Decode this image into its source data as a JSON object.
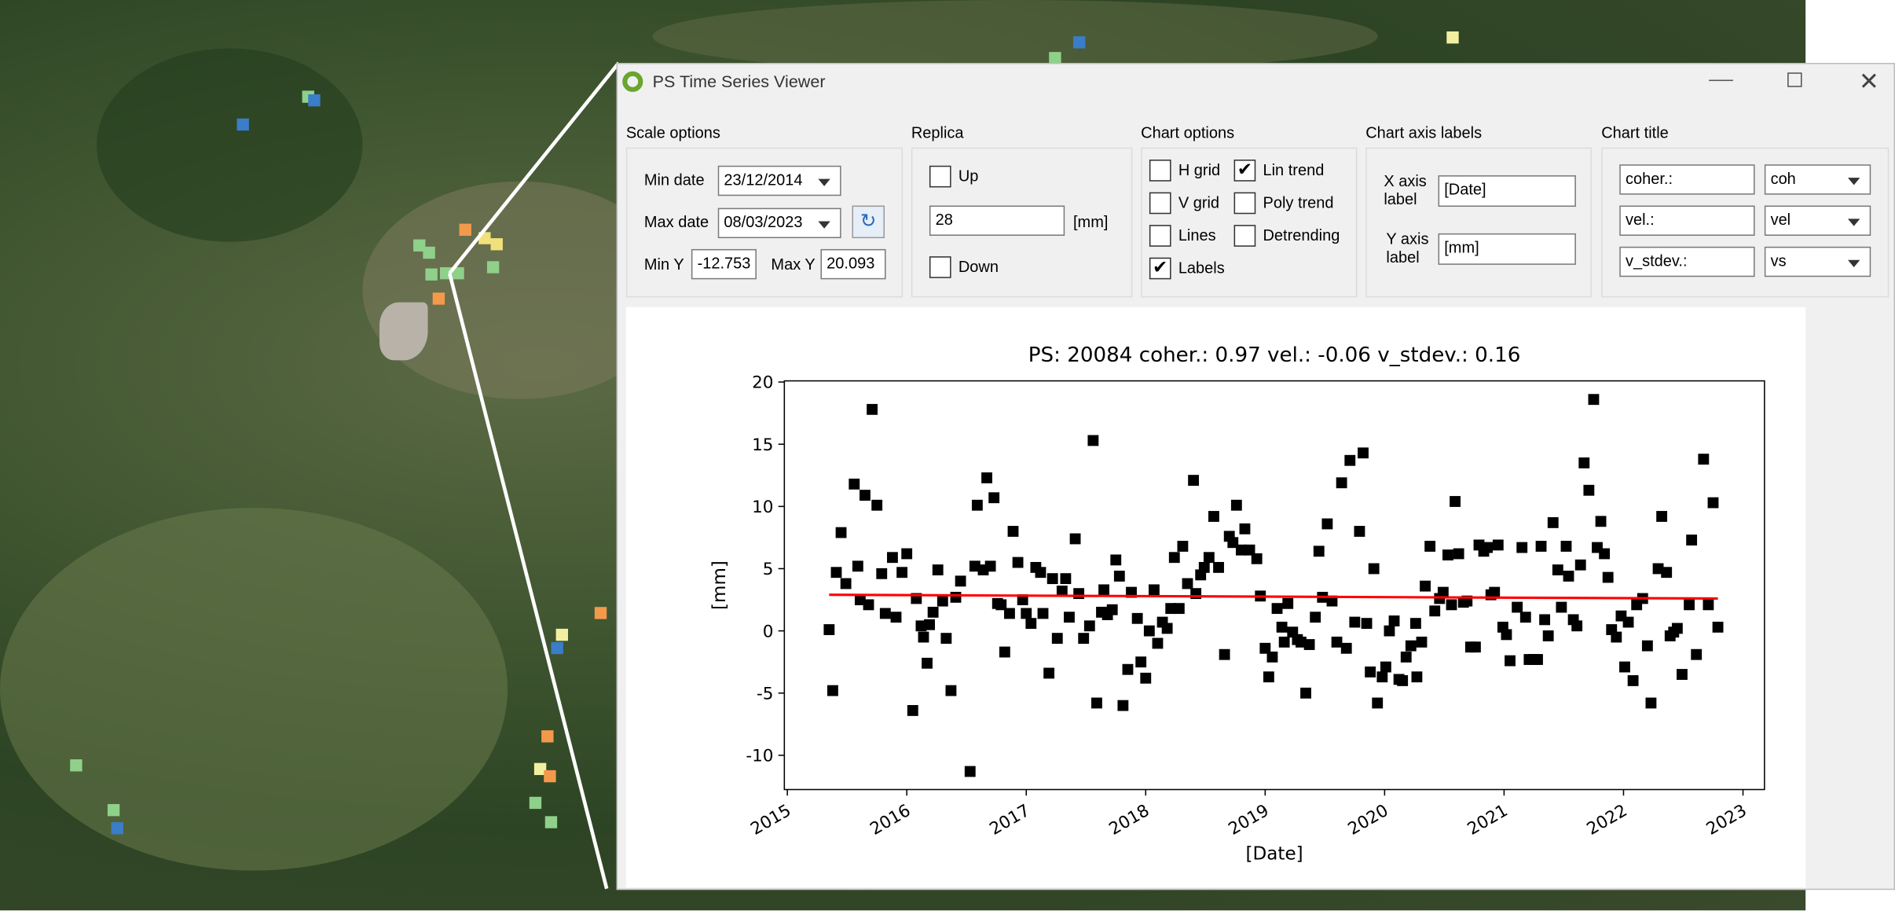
{
  "window": {
    "title": "PS Time Series Viewer"
  },
  "scale_options": {
    "label": "Scale options",
    "min_date_label": "Min date",
    "min_date": "23/12/2014",
    "max_date_label": "Max date",
    "max_date": "08/03/2023",
    "min_y_label": "Min Y",
    "min_y": "-12.753",
    "max_y_label": "Max Y",
    "max_y": "20.093"
  },
  "replica": {
    "label": "Replica",
    "up": "Up",
    "value": "28",
    "unit": "[mm]",
    "down": "Down"
  },
  "chart_options": {
    "label": "Chart options",
    "checkboxes": [
      {
        "label": "H grid",
        "checked": false
      },
      {
        "label": "V grid",
        "checked": false
      },
      {
        "label": "Lines",
        "checked": false
      },
      {
        "label": "Labels",
        "checked": true
      },
      {
        "label": "Lin trend",
        "checked": true
      },
      {
        "label": "Poly trend",
        "checked": false
      },
      {
        "label": "Detrending",
        "checked": false
      }
    ]
  },
  "axis_labels": {
    "label": "Chart axis labels",
    "x_label": "X axis label",
    "x_value": "[Date]",
    "y_label": "Y axis label",
    "y_value": "[mm]"
  },
  "chart_title_panel": {
    "label": "Chart title",
    "rows": [
      {
        "text": "coher.:",
        "field": "coh"
      },
      {
        "text": "vel.:",
        "field": "vel"
      },
      {
        "text": "v_stdev.:",
        "field": "vs"
      }
    ]
  },
  "chart_data": {
    "type": "scatter",
    "title": "PS: 20084 coher.: 0.97 vel.: -0.06 v_stdev.: 0.16",
    "xlabel": "[Date]",
    "ylabel": "[mm]",
    "color": "#000000",
    "xlim": [
      2014.975,
      2023.18
    ],
    "ylim": [
      -12.753,
      20.093
    ],
    "xticks": [
      2015,
      2016,
      2017,
      2018,
      2019,
      2020,
      2021,
      2022,
      2023
    ],
    "yticks": [
      -10,
      -5,
      0,
      5,
      10,
      15,
      20
    ],
    "x": [
      2015.35,
      2015.38,
      2015.41,
      2015.45,
      2015.49,
      2015.56,
      2015.59,
      2015.61,
      2015.65,
      2015.68,
      2015.71,
      2015.75,
      2015.79,
      2015.82,
      2015.88,
      2015.91,
      2015.96,
      2016.0,
      2016.05,
      2016.08,
      2016.12,
      2016.14,
      2016.17,
      2016.19,
      2016.22,
      2016.26,
      2016.3,
      2016.33,
      2016.37,
      2016.41,
      2016.45,
      2016.53,
      2016.57,
      2016.59,
      2016.64,
      2016.67,
      2016.7,
      2016.73,
      2016.76,
      2016.79,
      2016.82,
      2016.86,
      2016.89,
      2016.93,
      2016.97,
      2017.0,
      2017.04,
      2017.08,
      2017.12,
      2017.14,
      2017.19,
      2017.22,
      2017.26,
      2017.3,
      2017.33,
      2017.36,
      2017.41,
      2017.44,
      2017.48,
      2017.53,
      2017.56,
      2017.59,
      2017.63,
      2017.65,
      2017.68,
      2017.72,
      2017.75,
      2017.78,
      2017.81,
      2017.85,
      2017.88,
      2017.93,
      2017.96,
      2018.0,
      2018.03,
      2018.07,
      2018.1,
      2018.14,
      2018.18,
      2018.21,
      2018.24,
      2018.28,
      2018.31,
      2018.35,
      2018.4,
      2018.42,
      2018.46,
      2018.49,
      2018.53,
      2018.57,
      2018.61,
      2018.66,
      2018.7,
      2018.73,
      2018.76,
      2018.8,
      2018.83,
      2018.87,
      2018.93,
      2018.96,
      2019.0,
      2019.03,
      2019.06,
      2019.1,
      2019.14,
      2019.16,
      2019.19,
      2019.23,
      2019.27,
      2019.3,
      2019.34,
      2019.37,
      2019.42,
      2019.45,
      2019.48,
      2019.52,
      2019.56,
      2019.6,
      2019.64,
      2019.68,
      2019.71,
      2019.75,
      2019.79,
      2019.82,
      2019.85,
      2019.88,
      2019.91,
      2019.94,
      2019.98,
      2020.01,
      2020.04,
      2020.08,
      2020.12,
      2020.15,
      2020.18,
      2020.22,
      2020.26,
      2020.27,
      2020.31,
      2020.34,
      2020.38,
      2020.42,
      2020.46,
      2020.49,
      2020.53,
      2020.56,
      2020.59,
      2020.62,
      2020.66,
      2020.69,
      2020.72,
      2020.76,
      2020.79,
      2020.83,
      2020.86,
      2020.89,
      2020.92,
      2020.95,
      2020.99,
      2021.02,
      2021.05,
      2021.11,
      2021.15,
      2021.18,
      2021.21,
      2021.25,
      2021.28,
      2021.31,
      2021.34,
      2021.37,
      2021.41,
      2021.45,
      2021.48,
      2021.52,
      2021.54,
      2021.58,
      2021.61,
      2021.64,
      2021.67,
      2021.71,
      2021.75,
      2021.78,
      2021.81,
      2021.84,
      2021.87,
      2021.9,
      2021.94,
      2021.98,
      2022.01,
      2022.04,
      2022.08,
      2022.11,
      2022.16,
      2022.2,
      2022.23,
      2022.29,
      2022.32,
      2022.36,
      2022.39,
      2022.42,
      2022.45,
      2022.49,
      2022.55,
      2022.57,
      2022.61,
      2022.67,
      2022.71,
      2022.75,
      2022.79
    ],
    "values": [
      0.1,
      -4.8,
      4.7,
      7.9,
      3.8,
      11.8,
      5.2,
      2.5,
      10.9,
      2.1,
      17.8,
      10.1,
      4.6,
      1.4,
      5.9,
      1.1,
      4.7,
      6.2,
      -6.4,
      2.6,
      0.4,
      -0.5,
      -2.6,
      0.5,
      1.5,
      4.9,
      2.4,
      -0.6,
      -4.8,
      2.7,
      4.0,
      -11.3,
      5.2,
      10.1,
      4.9,
      12.3,
      5.2,
      10.7,
      2.2,
      2.1,
      -1.7,
      1.4,
      8.0,
      5.5,
      2.5,
      1.4,
      0.6,
      5.1,
      4.7,
      1.4,
      -3.4,
      4.2,
      -0.6,
      3.2,
      4.2,
      1.1,
      7.4,
      3.0,
      -0.6,
      0.4,
      15.3,
      -5.8,
      1.5,
      3.3,
      1.3,
      1.7,
      5.7,
      4.4,
      -6.0,
      -3.1,
      3.1,
      1.0,
      -2.5,
      -3.8,
      0.0,
      3.3,
      -1.0,
      0.7,
      0.2,
      1.8,
      5.9,
      1.8,
      6.8,
      3.8,
      12.1,
      3.0,
      4.5,
      5.1,
      5.9,
      9.2,
      5.1,
      -1.9,
      7.6,
      7.1,
      10.1,
      6.5,
      8.2,
      6.5,
      5.8,
      2.8,
      -1.4,
      -3.7,
      -2.1,
      1.8,
      0.3,
      -0.9,
      2.2,
      -0.1,
      -0.7,
      -0.9,
      -5.0,
      -1.1,
      1.1,
      6.4,
      2.7,
      8.6,
      2.4,
      -0.9,
      11.9,
      -1.4,
      13.7,
      0.7,
      8.0,
      14.3,
      0.6,
      -3.3,
      5.0,
      -5.8,
      -3.7,
      -2.9,
      0.0,
      0.8,
      -3.9,
      -4.0,
      -2.1,
      -1.2,
      0.6,
      -3.7,
      -0.9,
      3.6,
      6.8,
      1.6,
      2.6,
      3.1,
      6.1,
      2.1,
      10.4,
      6.2,
      2.3,
      2.4,
      -1.3,
      -1.3,
      6.9,
      6.4,
      6.7,
      2.9,
      3.1,
      6.9,
      0.3,
      -0.3,
      -2.4,
      1.9,
      6.7,
      1.1,
      -2.3,
      -2.3,
      -2.3,
      6.8,
      0.9,
      -0.4,
      8.7,
      4.9,
      1.9,
      6.8,
      4.4,
      0.9,
      0.4,
      5.3,
      13.5,
      11.3,
      18.6,
      6.7,
      8.8,
      6.2,
      4.3,
      0.1,
      -0.5,
      1.2,
      -2.9,
      0.7,
      -4.0,
      2.1,
      2.6,
      -1.2,
      -5.8,
      5.0,
      9.2,
      4.7,
      -0.4,
      -0.1,
      0.2,
      -3.5,
      2.1,
      7.3,
      -1.9,
      13.8,
      2.1,
      10.3,
      0.3
    ],
    "trend": {
      "x": [
        2015.35,
        2022.79
      ],
      "values": [
        2.9,
        2.6
      ],
      "color": "#ff0000"
    }
  }
}
